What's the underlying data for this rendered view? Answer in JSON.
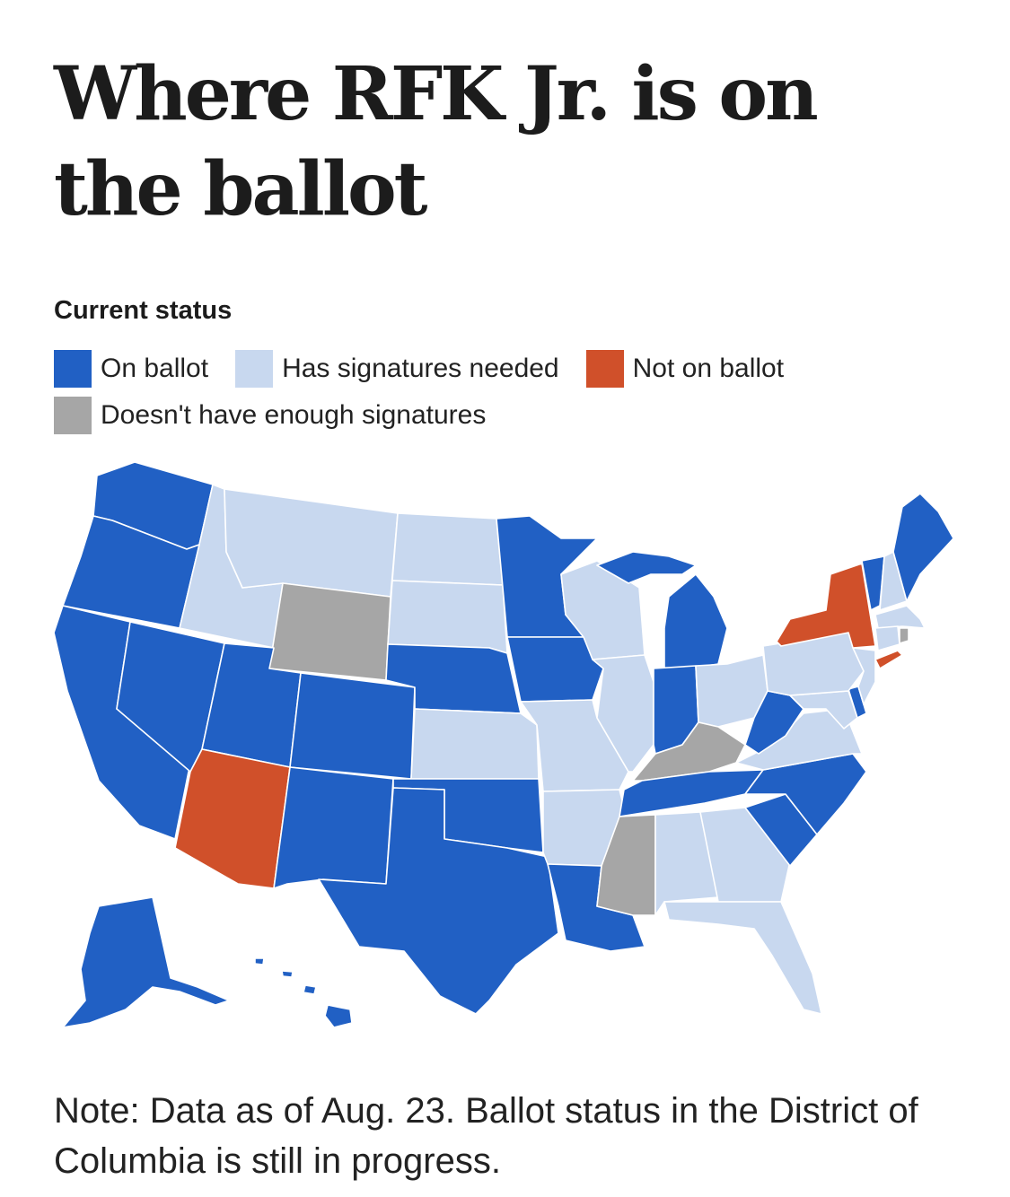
{
  "title": "Where RFK Jr. is on the ballot",
  "legend": {
    "title": "Current status",
    "items": [
      {
        "key": "on",
        "label": "On ballot",
        "color": "#2160c4"
      },
      {
        "key": "sig",
        "label": "Has signatures needed",
        "color": "#c8d8ef"
      },
      {
        "key": "not",
        "label": "Not on ballot",
        "color": "#d0502a"
      },
      {
        "key": "low",
        "label": "Doesn't have enough signatures",
        "color": "#a6a6a6"
      }
    ]
  },
  "states": {
    "AL": "sig",
    "AK": "on",
    "AZ": "not",
    "AR": "sig",
    "CA": "on",
    "CO": "on",
    "CT": "sig",
    "DE": "on",
    "FL": "sig",
    "GA": "sig",
    "HI": "on",
    "ID": "sig",
    "IL": "sig",
    "IN": "on",
    "IA": "on",
    "KS": "sig",
    "KY": "low",
    "LA": "on",
    "ME": "on",
    "MD": "sig",
    "MA": "sig",
    "MI": "on",
    "MN": "on",
    "MS": "low",
    "MO": "sig",
    "MT": "sig",
    "NE": "on",
    "NV": "on",
    "NH": "sig",
    "NJ": "sig",
    "NM": "on",
    "NY": "not",
    "NC": "on",
    "ND": "sig",
    "OH": "sig",
    "OK": "on",
    "OR": "on",
    "PA": "sig",
    "RI": "low",
    "SC": "on",
    "SD": "sig",
    "TN": "on",
    "TX": "on",
    "UT": "on",
    "VT": "on",
    "VA": "sig",
    "WA": "on",
    "WV": "on",
    "WI": "sig",
    "WY": "low"
  },
  "note": "Note: Data as of Aug. 23. Ballot status in the District of Columbia is still in progress."
}
